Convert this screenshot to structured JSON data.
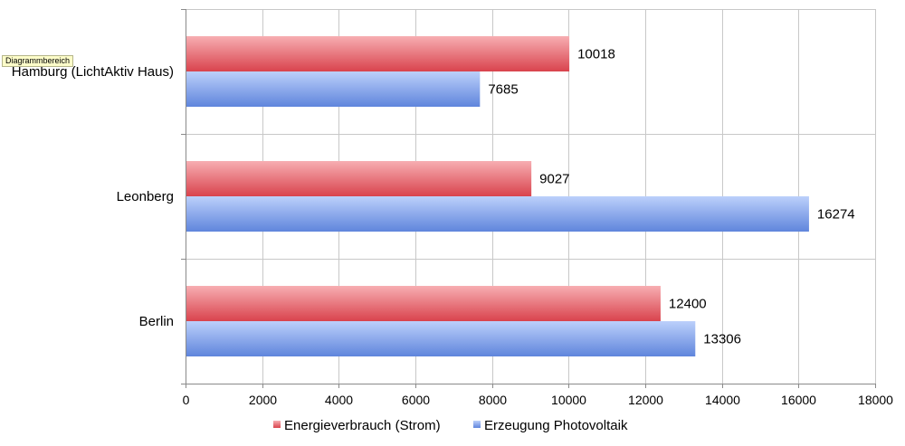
{
  "tooltip": "Diagrammbereich",
  "chart_data": {
    "type": "bar",
    "orientation": "horizontal",
    "categories": [
      "Hamburg (LichtAktiv Haus)",
      "Leonberg",
      "Berlin"
    ],
    "series": [
      {
        "name": "Energieverbrauch (Strom)",
        "values": [
          10018,
          9027,
          12400
        ],
        "color": "#e05a63"
      },
      {
        "name": "Erzeugung Photovoltaik",
        "values": [
          7685,
          16274,
          13306
        ],
        "color": "#7ea0e8"
      }
    ],
    "xlim": [
      0,
      18000
    ],
    "xticks": [
      0,
      2000,
      4000,
      6000,
      8000,
      10000,
      12000,
      14000,
      16000,
      18000
    ],
    "grid": true,
    "legend_position": "bottom"
  }
}
